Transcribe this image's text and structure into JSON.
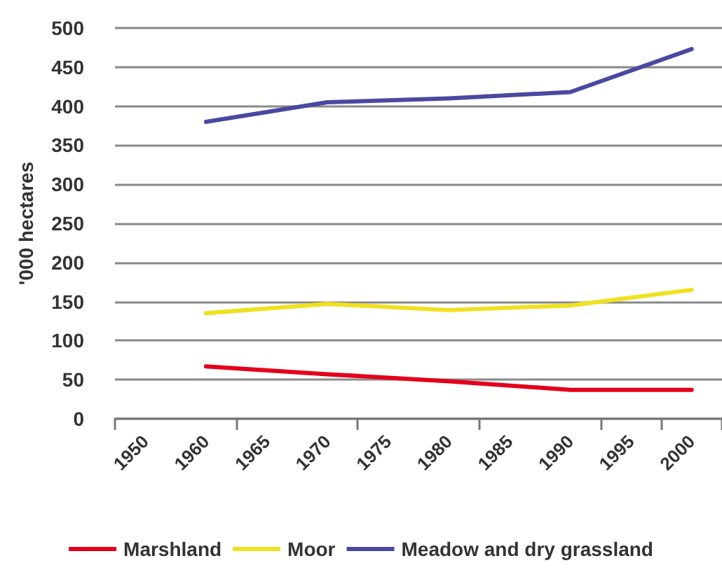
{
  "chart_data": {
    "type": "line",
    "ylabel": "'000 hectares",
    "categories": [
      "1950",
      "1960",
      "1965",
      "1970",
      "1975",
      "1980",
      "1985",
      "1990",
      "1995",
      "2000"
    ],
    "series": [
      {
        "name": "Marshland",
        "color": "#e3001b",
        "values": [
          null,
          67,
          null,
          57,
          null,
          48,
          null,
          37,
          null,
          37
        ]
      },
      {
        "name": "Moor",
        "color": "#f0e020",
        "values": [
          null,
          135,
          null,
          147,
          null,
          139,
          null,
          145,
          null,
          165
        ]
      },
      {
        "name": "Meadow and dry grassland",
        "color": "#4b48a0",
        "values": [
          null,
          380,
          null,
          405,
          null,
          410,
          null,
          418,
          null,
          473
        ]
      }
    ],
    "ylim": [
      0,
      500
    ],
    "yticks": [
      0,
      50,
      100,
      150,
      200,
      250,
      300,
      350,
      400,
      450,
      500
    ],
    "grid": "y",
    "legend": "bottom",
    "marker": "none",
    "line_style": "solid"
  }
}
